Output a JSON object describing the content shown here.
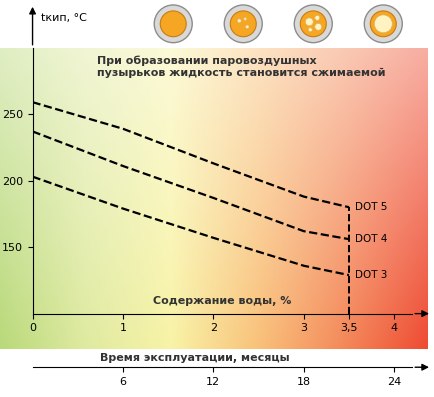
{
  "chart_data": {
    "type": "line",
    "annotation": "При образовании паровоздушных\nпузырьков жидкость становится сжимаемой",
    "ylabel": "tкип, °C",
    "xlabel": "Содержание воды, %",
    "x": [
      0,
      1,
      2,
      3,
      3.5
    ],
    "series": [
      {
        "name": "DOT 5",
        "color": "#000000",
        "line_style": "dashed",
        "values": [
          259,
          239,
          213,
          188,
          180
        ]
      },
      {
        "name": "DOT 4",
        "color": "#000000",
        "line_style": "dashed",
        "values": [
          237,
          211,
          187,
          162,
          156
        ]
      },
      {
        "name": "DOT 3",
        "color": "#000000",
        "line_style": "dashed",
        "values": [
          203,
          179,
          157,
          136,
          129
        ]
      }
    ],
    "xlim": [
      0,
      4.2
    ],
    "xticks": [
      0,
      1,
      2,
      3,
      {
        "value": 3.5,
        "label": "3,5"
      },
      4
    ],
    "ylim": [
      100,
      300
    ],
    "yticks": [
      150,
      200,
      250
    ],
    "x2label": "Время эксплуатации, месяцы",
    "x2lim": [
      0,
      25.2
    ],
    "x2ticks": [
      6,
      12,
      18,
      24
    ]
  }
}
